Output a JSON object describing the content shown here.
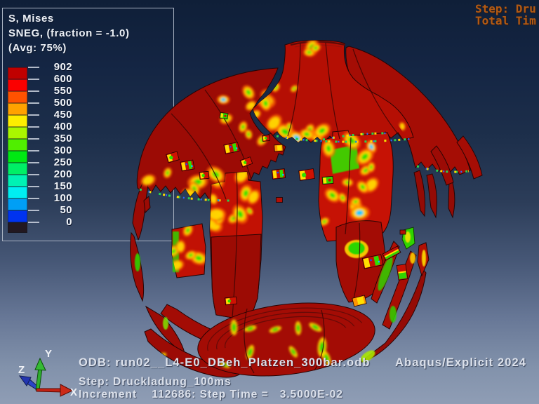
{
  "legend": {
    "title": "S, Mises",
    "subtitle": "SNEG, (fraction = -1.0)",
    "avg": "(Avg: 75%)",
    "labels": [
      "902",
      "600",
      "550",
      "500",
      "450",
      "400",
      "350",
      "300",
      "250",
      "200",
      "150",
      "100",
      "50",
      "0"
    ],
    "colors": [
      "#c00000",
      "#fb0000",
      "#ff5200",
      "#ffa200",
      "#fded00",
      "#aaf600",
      "#50ee00",
      "#00e913",
      "#00ef66",
      "#00f2b4",
      "#00eef2",
      "#009ff5",
      "#0033f0"
    ],
    "below_min_color": "#221820"
  },
  "status_block": {
    "line1": "Step: Dru",
    "line2": "Total Tim"
  },
  "footer": {
    "odb": "ODB: run02__L4-E0_DBeh_Platzen_300bar.odb",
    "product": "Abaqus/Explicit 2024",
    "step": "Step: Druckladung_100ms",
    "increment": "Increment    112686: Step Time =   3.5000E-02"
  },
  "triad": {
    "x": "X",
    "y": "Y",
    "z": "Z"
  }
}
